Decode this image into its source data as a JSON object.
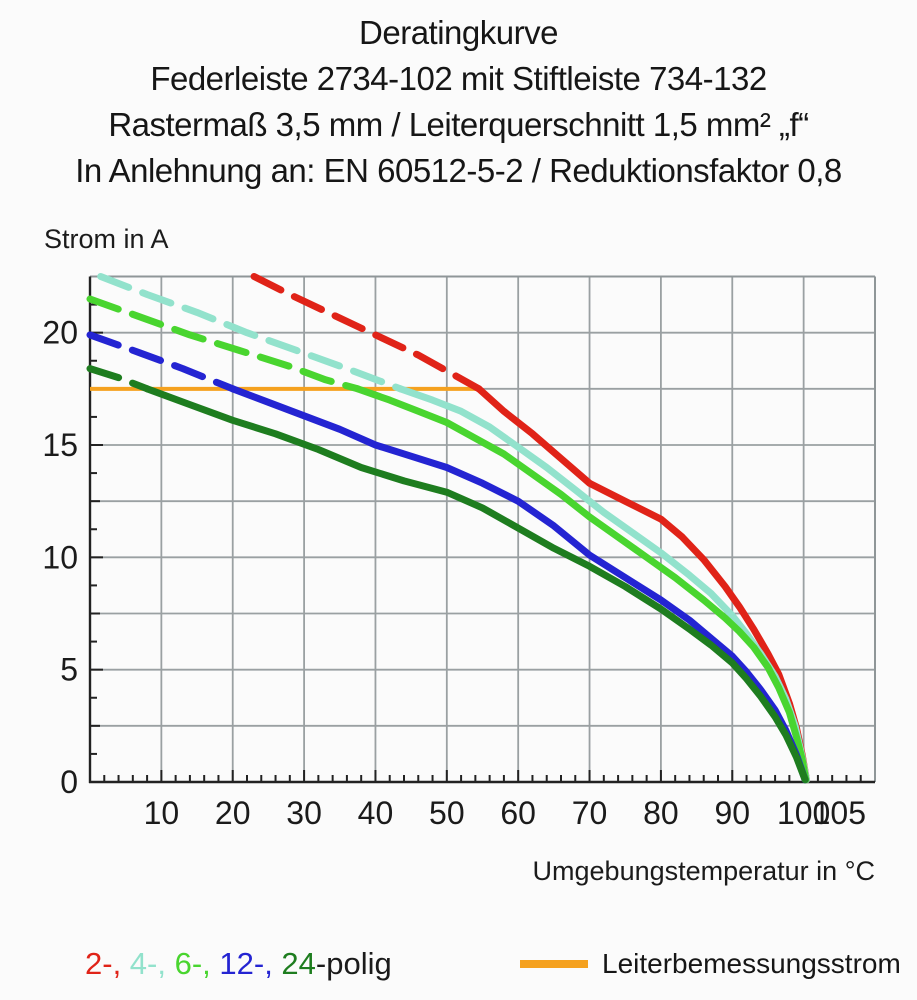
{
  "title": {
    "line1": "Deratingkurve",
    "line2": "Federleiste 2734-102 mit Stiftleiste 734-132",
    "line3": "Rastermaß 3,5 mm / Leiterquerschnitt 1,5 mm² „f“",
    "line4": "In Anlehnung an: EN 60512-5-2 / Reduktionsfaktor 0,8"
  },
  "labels": {
    "y_axis": "Strom in A",
    "x_axis": "Umgebungstemperatur in °C"
  },
  "colors": {
    "text": "#1b1b1b",
    "grid": "#9aa0a2",
    "frame": "#8f9698",
    "axis": "#222222",
    "rated_orange": "#f5a11f"
  },
  "legend": {
    "pole_items": [
      {
        "label": "2-, ",
        "color": "#e02318"
      },
      {
        "label": "4-, ",
        "color": "#92e2cc"
      },
      {
        "label": "6-, ",
        "color": "#49d52f"
      },
      {
        "label": "12-, ",
        "color": "#2424d2"
      },
      {
        "label": "24",
        "color": "#1e7d1f"
      },
      {
        "label": "-polig",
        "color": "#1b1b1b"
      }
    ],
    "rated": {
      "label": "Leiterbemessungsstrom",
      "color": "#f5a11f"
    }
  },
  "chart_data": {
    "type": "line",
    "title": "Deratingkurve",
    "xlabel": "Umgebungstemperatur in °C",
    "ylabel": "Strom in A",
    "xlim": [
      0,
      110
    ],
    "ylim": [
      0,
      22.5
    ],
    "grid": {
      "on": true,
      "x_step": 10,
      "y_step": 2.5
    },
    "x_tick_labels": [
      [
        10,
        "10"
      ],
      [
        20,
        "20"
      ],
      [
        30,
        "30"
      ],
      [
        40,
        "40"
      ],
      [
        50,
        "50"
      ],
      [
        60,
        "60"
      ],
      [
        70,
        "70"
      ],
      [
        80,
        "80"
      ],
      [
        90,
        "90"
      ],
      [
        100,
        "100"
      ],
      [
        105,
        "105"
      ]
    ],
    "y_tick_labels": [
      [
        0,
        "0"
      ],
      [
        5,
        "5"
      ],
      [
        10,
        "10"
      ],
      [
        15,
        "15"
      ],
      [
        20,
        "20"
      ]
    ],
    "x_minor_tick_step": 2,
    "y_minor_tick_step": 1.25,
    "rated_current_line": {
      "label": "Leiterbemessungsstrom",
      "value_A": 17.5,
      "color": "#f5a11f",
      "x_start": 0,
      "x_end": 54.5
    },
    "note": "curves dashed above rated current (17.5 A), solid below; x = ambient temperature °C, y = current A",
    "series": [
      {
        "name": "2-polig",
        "color": "#e02318",
        "points_dashed": [
          [
            23,
            22.5
          ],
          [
            28,
            21.7
          ],
          [
            34,
            20.8
          ],
          [
            40,
            19.9
          ],
          [
            46,
            19.0
          ],
          [
            50,
            18.3
          ],
          [
            54.5,
            17.5
          ]
        ],
        "points_solid": [
          [
            54.5,
            17.5
          ],
          [
            58,
            16.5
          ],
          [
            62,
            15.5
          ],
          [
            66,
            14.4
          ],
          [
            70,
            13.3
          ],
          [
            75,
            12.5
          ],
          [
            80,
            11.7
          ],
          [
            83,
            10.9
          ],
          [
            86,
            9.9
          ],
          [
            89,
            8.7
          ],
          [
            91,
            7.8
          ],
          [
            93,
            6.8
          ],
          [
            95,
            5.7
          ],
          [
            96.5,
            4.8
          ],
          [
            98,
            3.5
          ],
          [
            99,
            2.4
          ],
          [
            99.8,
            1.2
          ],
          [
            100.4,
            0.1
          ]
        ]
      },
      {
        "name": "4-polig",
        "color": "#92e2cc",
        "points_dashed": [
          [
            1.5,
            22.5
          ],
          [
            8,
            21.7
          ],
          [
            15,
            20.9
          ],
          [
            22,
            20.0
          ],
          [
            29,
            19.2
          ],
          [
            36,
            18.4
          ],
          [
            43.5,
            17.5
          ]
        ],
        "points_solid": [
          [
            43.5,
            17.5
          ],
          [
            48,
            17.0
          ],
          [
            52,
            16.5
          ],
          [
            56,
            15.8
          ],
          [
            60,
            14.9
          ],
          [
            64,
            14.0
          ],
          [
            68,
            13.0
          ],
          [
            72,
            12.0
          ],
          [
            76,
            11.1
          ],
          [
            80,
            10.2
          ],
          [
            84,
            9.2
          ],
          [
            87,
            8.4
          ],
          [
            90,
            7.4
          ],
          [
            92,
            6.6
          ],
          [
            94,
            5.7
          ],
          [
            96,
            4.7
          ],
          [
            97.5,
            3.7
          ],
          [
            98.8,
            2.5
          ],
          [
            99.8,
            1.1
          ],
          [
            100.4,
            0.1
          ]
        ]
      },
      {
        "name": "6-polig",
        "color": "#49d52f",
        "points_dashed": [
          [
            0,
            21.5
          ],
          [
            7,
            20.7
          ],
          [
            14,
            19.9
          ],
          [
            21,
            19.2
          ],
          [
            28,
            18.5
          ],
          [
            33,
            17.9
          ],
          [
            37.5,
            17.5
          ]
        ],
        "points_solid": [
          [
            37.5,
            17.5
          ],
          [
            42,
            17.0
          ],
          [
            46,
            16.5
          ],
          [
            50,
            16.0
          ],
          [
            54,
            15.3
          ],
          [
            58,
            14.6
          ],
          [
            62,
            13.7
          ],
          [
            66,
            12.8
          ],
          [
            70,
            11.8
          ],
          [
            74,
            10.9
          ],
          [
            78,
            10.0
          ],
          [
            82,
            9.1
          ],
          [
            86,
            8.1
          ],
          [
            89,
            7.3
          ],
          [
            91,
            6.7
          ],
          [
            93,
            6.0
          ],
          [
            95,
            5.1
          ],
          [
            96.5,
            4.2
          ],
          [
            98,
            3.1
          ],
          [
            99,
            2.0
          ],
          [
            99.8,
            1.0
          ],
          [
            100.3,
            0.1
          ]
        ]
      },
      {
        "name": "12-polig",
        "color": "#2424d2",
        "points_dashed": [
          [
            0,
            19.9
          ],
          [
            7,
            19.1
          ],
          [
            13,
            18.4
          ],
          [
            20,
            17.5
          ]
        ],
        "points_solid": [
          [
            20,
            17.5
          ],
          [
            25,
            16.9
          ],
          [
            30,
            16.3
          ],
          [
            35,
            15.7
          ],
          [
            40,
            15.0
          ],
          [
            45,
            14.5
          ],
          [
            50,
            14.0
          ],
          [
            55,
            13.3
          ],
          [
            60,
            12.5
          ],
          [
            65,
            11.4
          ],
          [
            70,
            10.1
          ],
          [
            75,
            9.1
          ],
          [
            80,
            8.1
          ],
          [
            84,
            7.2
          ],
          [
            87,
            6.4
          ],
          [
            90,
            5.6
          ],
          [
            92,
            4.9
          ],
          [
            94,
            4.1
          ],
          [
            96,
            3.2
          ],
          [
            97.5,
            2.3
          ],
          [
            99,
            1.2
          ],
          [
            100.2,
            0.1
          ]
        ]
      },
      {
        "name": "24-polig",
        "color": "#1e7d1f",
        "points_dashed": [
          [
            0,
            18.4
          ],
          [
            4,
            18.0
          ],
          [
            8,
            17.5
          ]
        ],
        "points_solid": [
          [
            8,
            17.5
          ],
          [
            14,
            16.8
          ],
          [
            20,
            16.1
          ],
          [
            26,
            15.5
          ],
          [
            32,
            14.8
          ],
          [
            38,
            14.0
          ],
          [
            44,
            13.4
          ],
          [
            50,
            12.9
          ],
          [
            55,
            12.2
          ],
          [
            60,
            11.3
          ],
          [
            65,
            10.4
          ],
          [
            70,
            9.6
          ],
          [
            75,
            8.7
          ],
          [
            80,
            7.7
          ],
          [
            84,
            6.8
          ],
          [
            87,
            6.1
          ],
          [
            90,
            5.3
          ],
          [
            92,
            4.6
          ],
          [
            94,
            3.8
          ],
          [
            96,
            2.9
          ],
          [
            97.5,
            2.1
          ],
          [
            99,
            1.1
          ],
          [
            100.2,
            0.1
          ]
        ]
      }
    ]
  }
}
